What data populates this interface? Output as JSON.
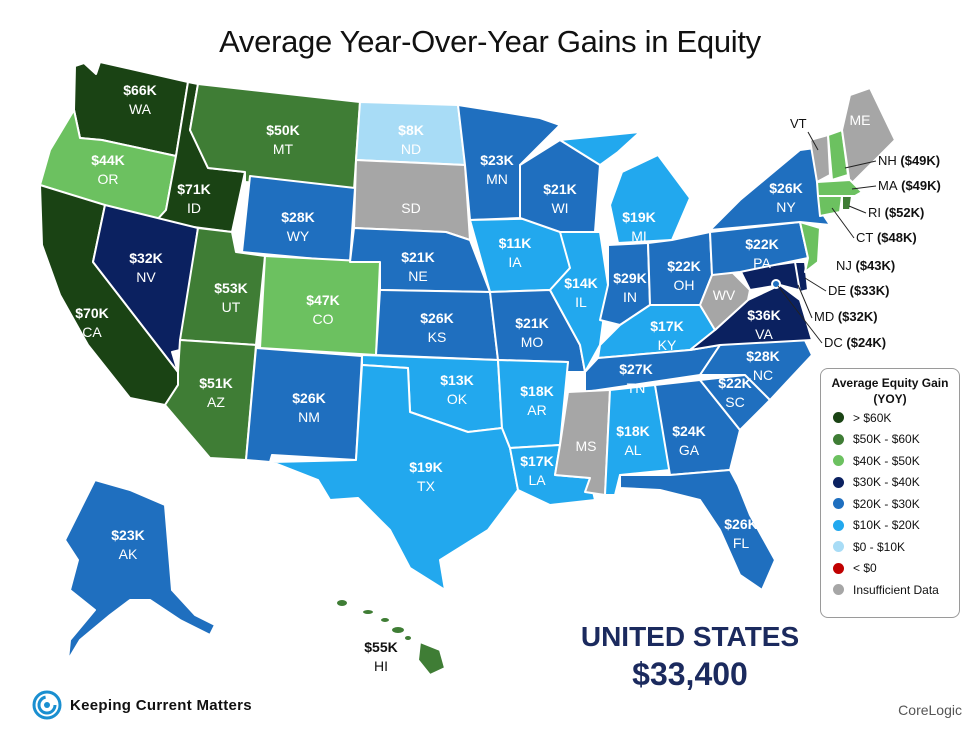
{
  "title": "Average Year-Over-Year Gains in Equity",
  "colors": {
    "gt60": "#1a4314",
    "50_60": "#3f7d35",
    "40_50": "#6cc160",
    "30_40": "#0b2160",
    "20_30": "#1f6fbf",
    "10_20": "#22a8ee",
    "0_10": "#a8dcf6",
    "lt0": "#c00000",
    "insufficient": "#a6a6a6"
  },
  "states": {
    "WA": {
      "abbr": "WA",
      "value": "$66K",
      "bin": "gt60"
    },
    "OR": {
      "abbr": "OR",
      "value": "$44K",
      "bin": "40_50"
    },
    "CA": {
      "abbr": "CA",
      "value": "$70K",
      "bin": "gt60"
    },
    "ID": {
      "abbr": "ID",
      "value": "$71K",
      "bin": "gt60"
    },
    "NV": {
      "abbr": "NV",
      "value": "$32K",
      "bin": "30_40"
    },
    "MT": {
      "abbr": "MT",
      "value": "$50K",
      "bin": "50_60"
    },
    "WY": {
      "abbr": "WY",
      "value": "$28K",
      "bin": "20_30"
    },
    "UT": {
      "abbr": "UT",
      "value": "$53K",
      "bin": "50_60"
    },
    "AZ": {
      "abbr": "AZ",
      "value": "$51K",
      "bin": "50_60"
    },
    "CO": {
      "abbr": "CO",
      "value": "$47K",
      "bin": "40_50"
    },
    "NM": {
      "abbr": "NM",
      "value": "$26K",
      "bin": "20_30"
    },
    "ND": {
      "abbr": "ND",
      "value": "$8K",
      "bin": "0_10"
    },
    "SD": {
      "abbr": "SD",
      "value": "",
      "bin": "insufficient"
    },
    "NE": {
      "abbr": "NE",
      "value": "$21K",
      "bin": "20_30"
    },
    "KS": {
      "abbr": "KS",
      "value": "$26K",
      "bin": "20_30"
    },
    "OK": {
      "abbr": "OK",
      "value": "$13K",
      "bin": "10_20"
    },
    "TX": {
      "abbr": "TX",
      "value": "$19K",
      "bin": "10_20"
    },
    "MN": {
      "abbr": "MN",
      "value": "$23K",
      "bin": "20_30"
    },
    "IA": {
      "abbr": "IA",
      "value": "$11K",
      "bin": "10_20"
    },
    "MO": {
      "abbr": "MO",
      "value": "$21K",
      "bin": "20_30"
    },
    "AR": {
      "abbr": "AR",
      "value": "$18K",
      "bin": "10_20"
    },
    "LA": {
      "abbr": "LA",
      "value": "$17K",
      "bin": "10_20"
    },
    "WI": {
      "abbr": "WI",
      "value": "$21K",
      "bin": "20_30"
    },
    "IL": {
      "abbr": "IL",
      "value": "$14K",
      "bin": "10_20"
    },
    "MI": {
      "abbr": "MI",
      "value": "$19K",
      "bin": "10_20"
    },
    "IN": {
      "abbr": "IN",
      "value": "$29K",
      "bin": "20_30"
    },
    "OH": {
      "abbr": "OH",
      "value": "$22K",
      "bin": "20_30"
    },
    "KY": {
      "abbr": "KY",
      "value": "$17K",
      "bin": "10_20"
    },
    "TN": {
      "abbr": "TN",
      "value": "$27K",
      "bin": "20_30"
    },
    "MS": {
      "abbr": "MS",
      "value": "",
      "bin": "insufficient"
    },
    "AL": {
      "abbr": "AL",
      "value": "$18K",
      "bin": "10_20"
    },
    "GA": {
      "abbr": "GA",
      "value": "$24K",
      "bin": "20_30"
    },
    "FL": {
      "abbr": "FL",
      "value": "$26K",
      "bin": "20_30"
    },
    "SC": {
      "abbr": "SC",
      "value": "$22K",
      "bin": "20_30"
    },
    "NC": {
      "abbr": "NC",
      "value": "$28K",
      "bin": "20_30"
    },
    "VA": {
      "abbr": "VA",
      "value": "$36K",
      "bin": "30_40"
    },
    "WV": {
      "abbr": "WV",
      "value": "",
      "bin": "insufficient"
    },
    "PA": {
      "abbr": "PA",
      "value": "$22K",
      "bin": "20_30"
    },
    "NY": {
      "abbr": "NY",
      "value": "$26K",
      "bin": "20_30"
    },
    "NJ": {
      "abbr": "NJ",
      "value": "($43K)",
      "bin": "40_50"
    },
    "DE": {
      "abbr": "DE",
      "value": "($33K)",
      "bin": "30_40"
    },
    "MD": {
      "abbr": "MD",
      "value": "($32K)",
      "bin": "30_40"
    },
    "DC": {
      "abbr": "DC",
      "value": "($24K)",
      "bin": "20_30"
    },
    "CT": {
      "abbr": "CT",
      "value": "($48K)",
      "bin": "40_50"
    },
    "RI": {
      "abbr": "RI",
      "value": "($52K)",
      "bin": "50_60"
    },
    "MA": {
      "abbr": "MA",
      "value": "($49K)",
      "bin": "40_50"
    },
    "NH": {
      "abbr": "NH",
      "value": "($49K)",
      "bin": "40_50"
    },
    "VT": {
      "abbr": "VT",
      "value": "",
      "bin": "insufficient"
    },
    "ME": {
      "abbr": "ME",
      "value": "",
      "bin": "insufficient"
    },
    "AK": {
      "abbr": "AK",
      "value": "$23K",
      "bin": "20_30"
    },
    "HI": {
      "abbr": "HI",
      "value": "$55K",
      "bin": "50_60"
    }
  },
  "legend": {
    "title": "Average Equity Gain (YOY)",
    "items": [
      {
        "label": "> $60K",
        "bin": "gt60"
      },
      {
        "label": "$50K - $60K",
        "bin": "50_60"
      },
      {
        "label": "$40K - $50K",
        "bin": "40_50"
      },
      {
        "label": "$30K - $40K",
        "bin": "30_40"
      },
      {
        "label": "$20K - $30K",
        "bin": "20_30"
      },
      {
        "label": "$10K - $20K",
        "bin": "10_20"
      },
      {
        "label": "$0 - $10K",
        "bin": "0_10"
      },
      {
        "label": "< $0",
        "bin": "lt0"
      },
      {
        "label": "Insufficient Data",
        "bin": "insufficient"
      }
    ]
  },
  "national": {
    "name": "UNITED STATES",
    "value": "$33,400"
  },
  "brand": "Keeping Current Matters",
  "source": "CoreLogic"
}
